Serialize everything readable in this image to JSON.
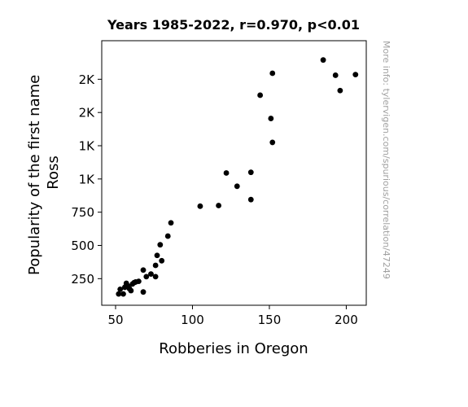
{
  "chart_data": {
    "type": "scatter",
    "title": "Years 1985-2022, r=0.970, p<0.01",
    "xlabel": "Robberies in Oregon",
    "ylabel_lines": [
      "Popularity of the first name",
      "Ross"
    ],
    "xlim": [
      41,
      213
    ],
    "ylim": [
      50,
      2040
    ],
    "x_ticks": [
      {
        "value": 50,
        "label": "50"
      },
      {
        "value": 100,
        "label": "100"
      },
      {
        "value": 150,
        "label": "150"
      },
      {
        "value": 200,
        "label": "200"
      }
    ],
    "y_ticks": [
      {
        "value": 250,
        "label": "250"
      },
      {
        "value": 500,
        "label": "500"
      },
      {
        "value": 750,
        "label": "750"
      },
      {
        "value": 1000,
        "label": "1K"
      },
      {
        "value": 1250,
        "label": "1K"
      },
      {
        "value": 1500,
        "label": "2K"
      },
      {
        "value": 1750,
        "label": "2K"
      }
    ],
    "grid": false,
    "marker_color": "#000000",
    "points": [
      {
        "x": 52,
        "y": 135
      },
      {
        "x": 53,
        "y": 170
      },
      {
        "x": 55,
        "y": 135
      },
      {
        "x": 56,
        "y": 185
      },
      {
        "x": 57,
        "y": 215
      },
      {
        "x": 58,
        "y": 195
      },
      {
        "x": 59,
        "y": 175
      },
      {
        "x": 60,
        "y": 160
      },
      {
        "x": 61,
        "y": 210
      },
      {
        "x": 62,
        "y": 220
      },
      {
        "x": 63,
        "y": 225
      },
      {
        "x": 65,
        "y": 230
      },
      {
        "x": 68,
        "y": 315
      },
      {
        "x": 68,
        "y": 150
      },
      {
        "x": 70,
        "y": 265
      },
      {
        "x": 73,
        "y": 285
      },
      {
        "x": 76,
        "y": 265
      },
      {
        "x": 76,
        "y": 350
      },
      {
        "x": 77,
        "y": 425
      },
      {
        "x": 79,
        "y": 505
      },
      {
        "x": 80,
        "y": 385
      },
      {
        "x": 84,
        "y": 570
      },
      {
        "x": 86,
        "y": 670
      },
      {
        "x": 105,
        "y": 795
      },
      {
        "x": 117,
        "y": 800
      },
      {
        "x": 122,
        "y": 1045
      },
      {
        "x": 129,
        "y": 945
      },
      {
        "x": 138,
        "y": 1050
      },
      {
        "x": 138,
        "y": 845
      },
      {
        "x": 144,
        "y": 1630
      },
      {
        "x": 151,
        "y": 1455
      },
      {
        "x": 152,
        "y": 1275
      },
      {
        "x": 152,
        "y": 1795
      },
      {
        "x": 185,
        "y": 1895
      },
      {
        "x": 193,
        "y": 1780
      },
      {
        "x": 196,
        "y": 1665
      },
      {
        "x": 206,
        "y": 1785
      }
    ]
  },
  "watermark": "More info: tylervigen.com/spurious/correlation/47249"
}
